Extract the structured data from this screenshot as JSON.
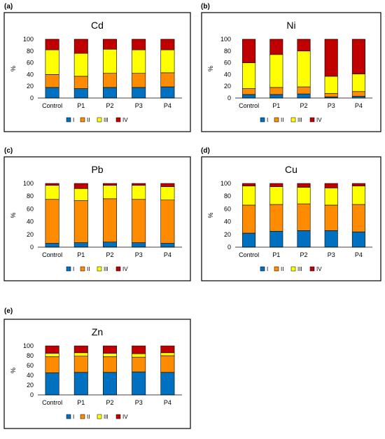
{
  "figure": {
    "legend_entries": [
      "I",
      "II",
      "III",
      "IV"
    ],
    "colors": [
      "#0070C0",
      "#FF8C00",
      "#FFFF00",
      "#C00000"
    ]
  },
  "chart_data": [
    {
      "panel": "(a)",
      "title": "Cd",
      "type": "bar",
      "stacked": true,
      "ylabel": "%",
      "ylim": [
        0,
        100
      ],
      "yticks": [
        0,
        20,
        40,
        60,
        80,
        100
      ],
      "categories": [
        "Control",
        "P1",
        "P2",
        "P3",
        "P4"
      ],
      "series": [
        {
          "name": "I",
          "values": [
            18,
            16,
            18,
            18,
            19
          ]
        },
        {
          "name": "II",
          "values": [
            22,
            21,
            24,
            24,
            24
          ]
        },
        {
          "name": "III",
          "values": [
            42,
            39,
            41,
            40,
            39
          ]
        },
        {
          "name": "IV",
          "values": [
            18,
            24,
            17,
            18,
            18
          ]
        }
      ],
      "legend": "bottom"
    },
    {
      "panel": "(b)",
      "title": "Ni",
      "type": "bar",
      "stacked": true,
      "ylabel": "%",
      "ylim": [
        0,
        100
      ],
      "yticks": [
        0,
        20,
        40,
        60,
        80,
        100
      ],
      "categories": [
        "Control",
        "P1",
        "P2",
        "P3",
        "P4"
      ],
      "series": [
        {
          "name": "I",
          "values": [
            6,
            6,
            7,
            2,
            3
          ]
        },
        {
          "name": "II",
          "values": [
            10,
            12,
            12,
            6,
            8
          ]
        },
        {
          "name": "III",
          "values": [
            44,
            56,
            61,
            29,
            30
          ]
        },
        {
          "name": "IV",
          "values": [
            40,
            26,
            20,
            63,
            59
          ]
        }
      ],
      "legend": "bottom"
    },
    {
      "panel": "(c)",
      "title": "Pb",
      "type": "bar",
      "stacked": true,
      "ylabel": "%",
      "ylim": [
        0,
        100
      ],
      "yticks": [
        0,
        20,
        40,
        60,
        80,
        100
      ],
      "categories": [
        "Control",
        "P1",
        "P2",
        "P3",
        "P4"
      ],
      "series": [
        {
          "name": "I",
          "values": [
            6,
            7,
            8,
            7,
            6
          ]
        },
        {
          "name": "II",
          "values": [
            69,
            66,
            68,
            68,
            68
          ]
        },
        {
          "name": "III",
          "values": [
            22,
            19,
            21,
            22,
            21
          ]
        },
        {
          "name": "IV",
          "values": [
            3,
            8,
            3,
            3,
            5
          ]
        }
      ],
      "legend": "bottom"
    },
    {
      "panel": "(d)",
      "title": "Cu",
      "type": "bar",
      "stacked": true,
      "ylabel": "%",
      "ylim": [
        0,
        100
      ],
      "yticks": [
        0,
        20,
        40,
        60,
        80,
        100
      ],
      "categories": [
        "Control",
        "P1",
        "P2",
        "P3",
        "P4"
      ],
      "series": [
        {
          "name": "I",
          "values": [
            22,
            25,
            26,
            26,
            24
          ]
        },
        {
          "name": "II",
          "values": [
            44,
            42,
            42,
            40,
            43
          ]
        },
        {
          "name": "III",
          "values": [
            30,
            28,
            26,
            27,
            29
          ]
        },
        {
          "name": "IV",
          "values": [
            4,
            5,
            6,
            7,
            4
          ]
        }
      ],
      "legend": "bottom"
    },
    {
      "panel": "(e)",
      "title": "Zn",
      "type": "bar",
      "stacked": true,
      "ylabel": "%",
      "ylim": [
        0,
        100
      ],
      "yticks": [
        0,
        20,
        40,
        60,
        80,
        100
      ],
      "categories": [
        "Control",
        "P1",
        "P2",
        "P3",
        "P4"
      ],
      "series": [
        {
          "name": "I",
          "values": [
            45,
            46,
            46,
            47,
            46
          ]
        },
        {
          "name": "II",
          "values": [
            33,
            33,
            32,
            30,
            34
          ]
        },
        {
          "name": "III",
          "values": [
            7,
            7,
            7,
            7,
            6
          ]
        },
        {
          "name": "IV",
          "values": [
            15,
            14,
            15,
            16,
            14
          ]
        }
      ],
      "legend": "bottom"
    }
  ]
}
